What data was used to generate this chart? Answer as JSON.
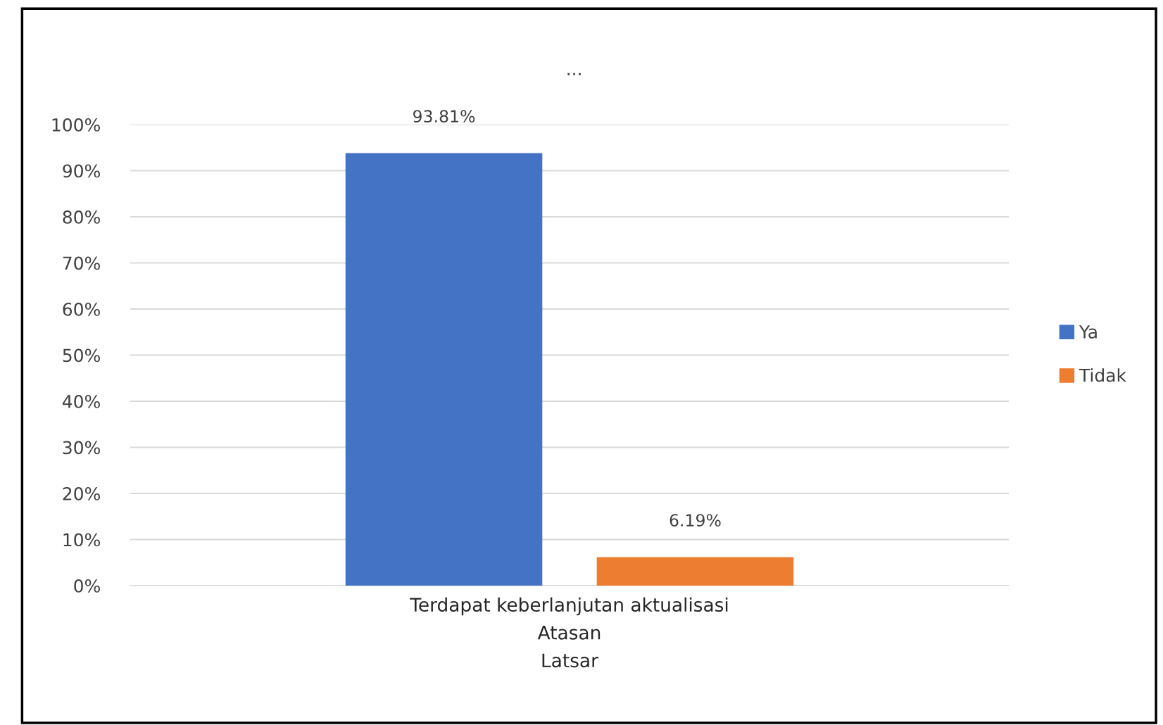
{
  "chart_data": {
    "type": "bar",
    "title": "...",
    "categories": [
      "Terdapat keberlanjutan aktualisasi\nAtasan\nLatsar"
    ],
    "series": [
      {
        "name": "Ya",
        "color": "#4472c4",
        "values": [
          93.81
        ],
        "value_labels": [
          "93.81%"
        ]
      },
      {
        "name": "Tidak",
        "color": "#ed7d31",
        "values": [
          6.19
        ],
        "value_labels": [
          "6.19%"
        ]
      }
    ],
    "ylim": [
      0,
      100
    ],
    "yticks": [
      {
        "value": 0,
        "label": "0%"
      },
      {
        "value": 10,
        "label": "10%"
      },
      {
        "value": 20,
        "label": "20%"
      },
      {
        "value": 30,
        "label": "30%"
      },
      {
        "value": 40,
        "label": "40%"
      },
      {
        "value": 50,
        "label": "50%"
      },
      {
        "value": 60,
        "label": "60%"
      },
      {
        "value": 70,
        "label": "70%"
      },
      {
        "value": 80,
        "label": "80%"
      },
      {
        "value": 90,
        "label": "90%"
      },
      {
        "value": 100,
        "label": "100%"
      }
    ],
    "grid": "y",
    "legend": "right"
  }
}
